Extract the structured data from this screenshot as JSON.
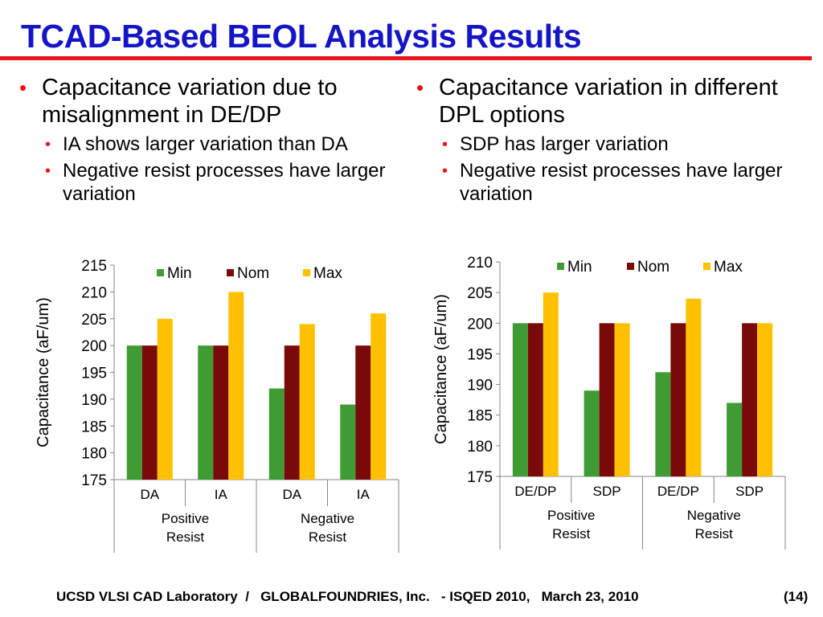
{
  "slide": {
    "title": "TCAD-Based BEOL Analysis Results",
    "accent_color": "#e8121a",
    "title_color": "#1515c8",
    "footer": "UCSD VLSI CAD Laboratory  /   GLOBALFOUNDRIES, Inc.   - ISQED 2010,   March 23, 2010",
    "page_number": "(14)"
  },
  "left_column": {
    "bullet": "Capacitance variation due to misalignment in DE/DP",
    "sub_bullets": [
      "IA shows larger variation than DA",
      "Negative resist processes have larger variation"
    ]
  },
  "right_column": {
    "bullet": "Capacitance variation in different DPL options",
    "sub_bullets": [
      "SDP has larger variation",
      "Negative resist processes have larger variation"
    ]
  },
  "chart_data": [
    {
      "type": "bar",
      "ylabel": "Capacitance (aF/um)",
      "ylim": [
        175,
        215
      ],
      "ytick_step": 5,
      "categories": [
        "DA",
        "IA",
        "DA",
        "IA"
      ],
      "groups": [
        {
          "label": "Positive Resist",
          "span": 2
        },
        {
          "label": "Negative Resist",
          "span": 2
        }
      ],
      "series": [
        {
          "name": "Min",
          "color": "#3f9c35",
          "values": [
            200,
            200,
            192,
            189
          ]
        },
        {
          "name": "Nom",
          "color": "#7a0a0a",
          "values": [
            200,
            200,
            200,
            200
          ]
        },
        {
          "name": "Max",
          "color": "#ffc000",
          "values": [
            205,
            210,
            204,
            206
          ]
        }
      ],
      "legend": "top"
    },
    {
      "type": "bar",
      "ylabel": "Capacitance (aF/um)",
      "ylim": [
        175,
        210
      ],
      "ytick_step": 5,
      "categories": [
        "DE/DP",
        "SDP",
        "DE/DP",
        "SDP"
      ],
      "groups": [
        {
          "label": "Positive Resist",
          "span": 2
        },
        {
          "label": "Negative Resist",
          "span": 2
        }
      ],
      "series": [
        {
          "name": "Min",
          "color": "#3f9c35",
          "values": [
            200,
            189,
            192,
            187
          ]
        },
        {
          "name": "Nom",
          "color": "#7a0a0a",
          "values": [
            200,
            200,
            200,
            200
          ]
        },
        {
          "name": "Max",
          "color": "#ffc000",
          "values": [
            205,
            200,
            204,
            200
          ]
        }
      ],
      "legend": "top"
    }
  ]
}
